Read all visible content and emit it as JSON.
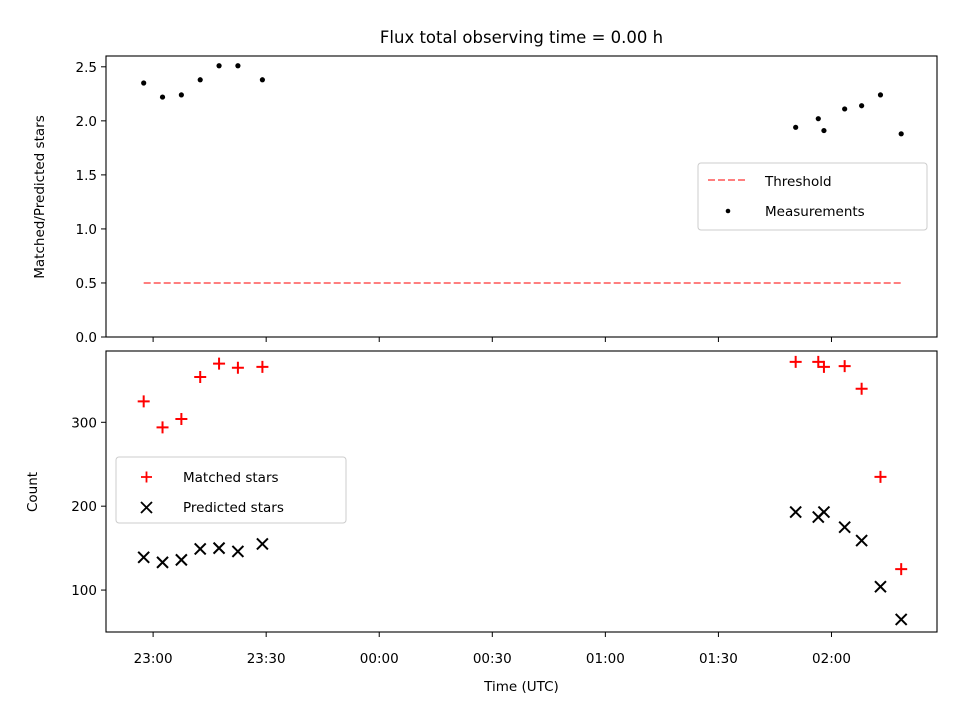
{
  "chart_data": {
    "title": "Flux total observing time = 0.00 h",
    "xlabel": "Time (UTC)",
    "x_tick_labels": [
      "23:00",
      "23:30",
      "00:00",
      "00:30",
      "01:00",
      "01:30",
      "02:00"
    ],
    "x_tick_minutes": [
      -60,
      -30,
      0,
      30,
      60,
      90,
      120
    ],
    "xlim_minutes": [
      -72.5,
      148
    ],
    "panels": [
      {
        "type": "scatter",
        "ylabel": "Matched/Predicted stars",
        "ylim": [
          0,
          2.6
        ],
        "y_ticks": [
          0.0,
          0.5,
          1.0,
          1.5,
          2.0,
          2.5
        ],
        "y_tick_labels": [
          "0.0",
          "0.5",
          "1.0",
          "1.5",
          "2.0",
          "2.5"
        ],
        "legend_position": "center-right",
        "series": [
          {
            "name": "Threshold",
            "kind": "dashed-line",
            "color": "#ff7f7f",
            "x": [
              -62.5,
              138.5
            ],
            "y": [
              0.5,
              0.5
            ]
          },
          {
            "name": "Measurements",
            "kind": "dots",
            "color": "#000000",
            "x": [
              -62.5,
              -57.5,
              -52.5,
              -47.5,
              -42.5,
              -37.5,
              -31.0,
              110.5,
              116.5,
              118.0,
              123.5,
              128.0,
              133.0,
              138.5
            ],
            "y": [
              2.35,
              2.22,
              2.24,
              2.38,
              2.51,
              2.51,
              2.38,
              1.94,
              2.02,
              1.91,
              2.11,
              2.14,
              2.24,
              1.88
            ]
          }
        ]
      },
      {
        "type": "scatter",
        "ylabel": "Count",
        "ylim": [
          50,
          385
        ],
        "y_ticks": [
          100,
          200,
          300
        ],
        "y_tick_labels": [
          "100",
          "200",
          "300"
        ],
        "legend_position": "center-left",
        "series": [
          {
            "name": "Matched stars",
            "kind": "plus",
            "color": "#ff0000",
            "x": [
              -62.5,
              -57.5,
              -52.5,
              -47.5,
              -42.5,
              -37.5,
              -31.0,
              110.5,
              116.5,
              118.0,
              123.5,
              128.0,
              133.0,
              138.5
            ],
            "y": [
              325,
              294,
              304,
              354,
              370,
              365,
              366,
              372,
              372,
              366,
              367,
              340,
              235,
              125
            ]
          },
          {
            "name": "Predicted stars",
            "kind": "cross",
            "color": "#000000",
            "x": [
              -62.5,
              -57.5,
              -52.5,
              -47.5,
              -42.5,
              -37.5,
              -31.0,
              110.5,
              116.5,
              118.0,
              123.5,
              128.0,
              133.0,
              138.5
            ],
            "y": [
              139,
              133,
              136,
              149,
              150,
              146,
              155,
              193,
              187,
              193,
              175,
              159,
              104,
              65
            ]
          }
        ]
      }
    ]
  }
}
